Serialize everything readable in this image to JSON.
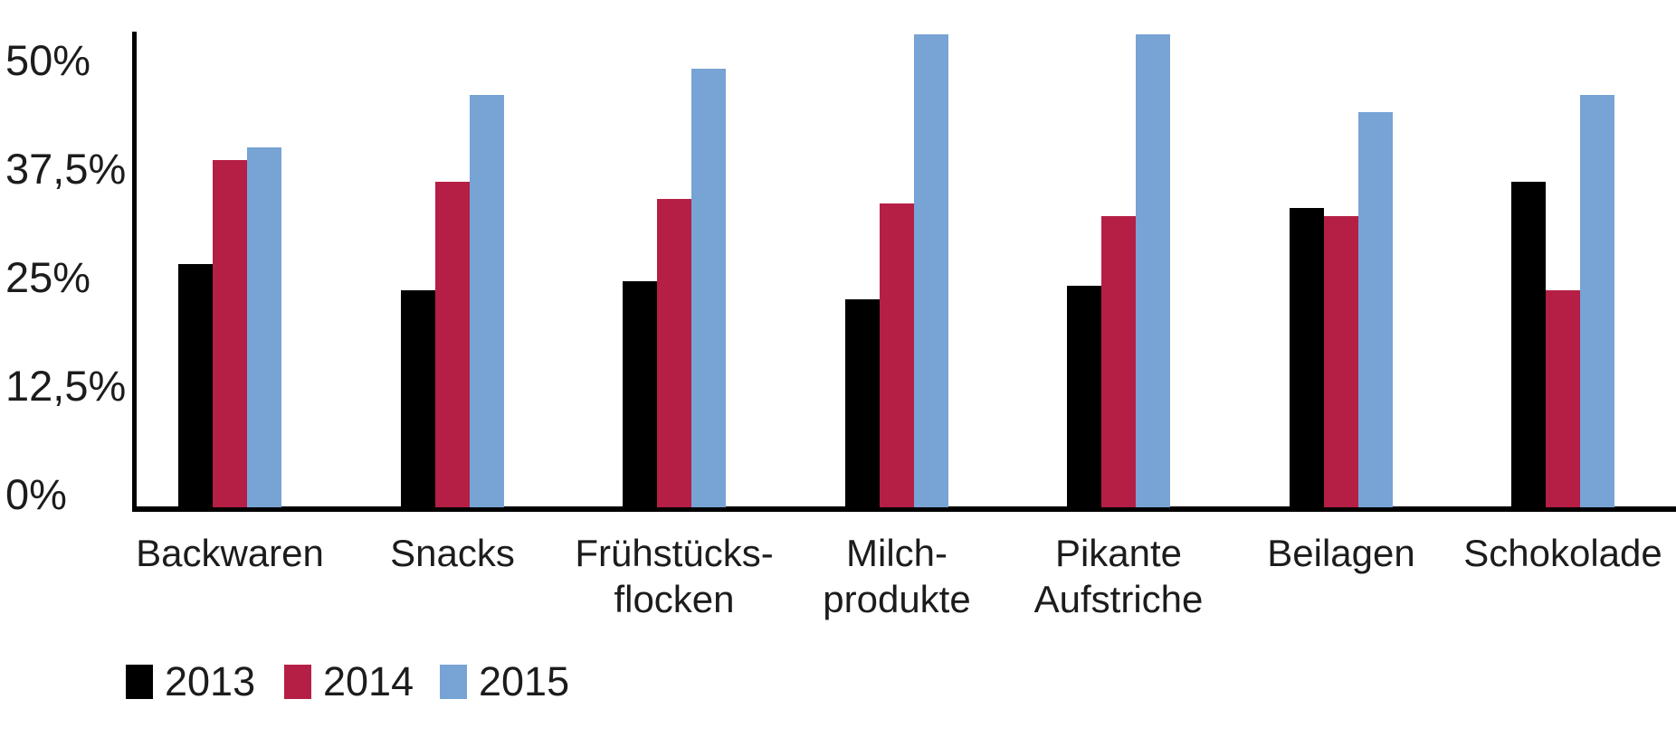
{
  "page": {
    "background": "#ffffff",
    "text_color": "#1c1c1c",
    "axis_color": "#000000"
  },
  "chart_data": {
    "type": "bar",
    "title": "",
    "categories": [
      "Backwaren",
      "Snacks",
      "Frühstücks-\nflocken",
      "Milch-\nprodukte",
      "Pikante\nAufstriche",
      "Beilagen",
      "Schokolade"
    ],
    "series": [
      {
        "name": "2013",
        "color": "#000000",
        "values": [
          28,
          25,
          26,
          24,
          25.5,
          34.5,
          37.5
        ]
      },
      {
        "name": "2014",
        "color": "#b51f45",
        "values": [
          40,
          37.5,
          35.5,
          35,
          33.5,
          33.5,
          25
        ]
      },
      {
        "name": "2015",
        "color": "#77a3d5",
        "values": [
          41.5,
          47.5,
          50.5,
          54.5,
          54.5,
          45.5,
          47.5
        ]
      }
    ],
    "yticks": [
      {
        "label": "50%",
        "value": 50
      },
      {
        "label": "37,5%",
        "value": 37.5
      },
      {
        "label": "25%",
        "value": 25
      },
      {
        "label": "12,5%",
        "value": 12.5
      },
      {
        "label": "0%",
        "value": 0
      }
    ],
    "unit": "%",
    "ylim": [
      0,
      55
    ],
    "grid": false,
    "legend_position": "bottom"
  }
}
